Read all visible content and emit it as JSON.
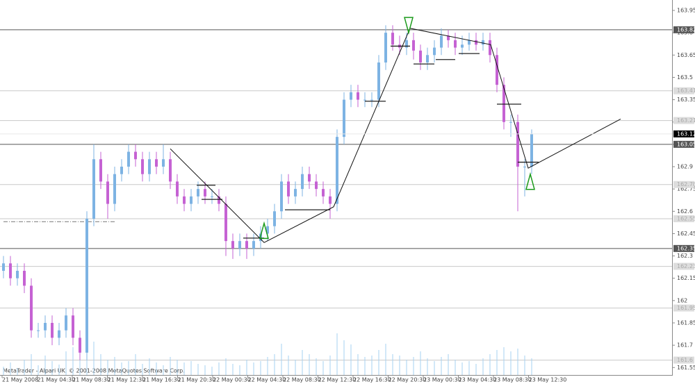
{
  "chart_data": {
    "type": "candlestick",
    "watermark": "MetaTrader - Alpari UK, © 2001-2008 MetaQuotes Software Corp.",
    "xlabels": [
      "21 May 2008",
      "21 May 04:30",
      "21 May 08:30",
      "21 May 12:30",
      "21 May 16:30",
      "21 May 20:30",
      "22 May 00:30",
      "22 May 04:30",
      "22 May 08:30",
      "22 May 12:30",
      "22 May 16:30",
      "22 May 20:30",
      "23 May 00:30",
      "23 May 04:30",
      "23 May 08:30",
      "23 May 12:30"
    ],
    "ylim": [
      161.5,
      164.02
    ],
    "yticks": [
      163.95,
      163.8,
      163.65,
      163.5,
      163.35,
      163.2,
      163.05,
      162.9,
      162.75,
      162.6,
      162.45,
      162.3,
      162.15,
      162.0,
      161.85,
      161.7,
      161.55
    ],
    "open": [
      162.2,
      162.25,
      162.15,
      162.2,
      162.1,
      161.8,
      161.8,
      161.85,
      161.75,
      161.8,
      161.9,
      161.75,
      161.65,
      162.55,
      162.95,
      162.8,
      162.65,
      162.85,
      162.9,
      163.0,
      162.95,
      162.85,
      162.95,
      162.9,
      162.95,
      162.8,
      162.7,
      162.65,
      162.7,
      162.75,
      162.7,
      162.7,
      162.65,
      162.4,
      162.35,
      162.4,
      162.35,
      162.4,
      162.45,
      162.5,
      162.6,
      162.8,
      162.7,
      162.75,
      162.85,
      162.8,
      162.75,
      162.7,
      162.65,
      163.1,
      163.35,
      163.4,
      163.35,
      163.35,
      163.35,
      163.6,
      163.8,
      163.72,
      163.7,
      163.75,
      163.68,
      163.6,
      163.65,
      163.7,
      163.78,
      163.75,
      163.7,
      163.72,
      163.75,
      163.72,
      163.75,
      163.65,
      163.45,
      163.2,
      163.2,
      162.9,
      162.9
    ],
    "high": [
      162.3,
      162.3,
      162.25,
      162.25,
      162.15,
      161.85,
      161.9,
      161.9,
      161.85,
      161.95,
      161.95,
      161.8,
      162.6,
      163.05,
      163.0,
      162.85,
      162.9,
      162.95,
      163.05,
      163.05,
      163.0,
      163.0,
      163.0,
      163.05,
      163.0,
      162.85,
      162.75,
      162.75,
      162.8,
      162.8,
      162.75,
      162.75,
      162.7,
      162.45,
      162.45,
      162.45,
      162.45,
      162.5,
      162.55,
      162.65,
      162.85,
      162.85,
      162.8,
      162.9,
      162.9,
      162.85,
      162.8,
      162.75,
      163.15,
      163.4,
      163.45,
      163.45,
      163.4,
      163.4,
      163.65,
      163.85,
      163.85,
      163.78,
      163.8,
      163.8,
      163.72,
      163.7,
      163.75,
      163.83,
      163.82,
      163.8,
      163.78,
      163.8,
      163.8,
      163.8,
      163.8,
      163.7,
      163.5,
      163.25,
      163.25,
      162.95,
      163.15
    ],
    "low": [
      162.15,
      162.1,
      162.1,
      162.05,
      161.75,
      161.75,
      161.75,
      161.7,
      161.7,
      161.75,
      161.7,
      161.6,
      161.6,
      162.5,
      162.75,
      162.55,
      162.6,
      162.8,
      162.85,
      162.9,
      162.8,
      162.8,
      162.85,
      162.85,
      162.75,
      162.65,
      162.6,
      162.6,
      162.65,
      162.65,
      162.65,
      162.6,
      162.3,
      162.28,
      162.3,
      162.28,
      162.3,
      162.35,
      162.4,
      162.45,
      162.55,
      162.65,
      162.65,
      162.7,
      162.75,
      162.7,
      162.65,
      162.55,
      162.6,
      163.05,
      163.3,
      163.3,
      163.3,
      163.3,
      163.3,
      163.55,
      163.68,
      163.65,
      163.65,
      163.62,
      163.55,
      163.55,
      163.6,
      163.65,
      163.7,
      163.65,
      163.65,
      163.68,
      163.68,
      163.68,
      163.6,
      163.4,
      163.15,
      163.1,
      162.6,
      162.7,
      162.85
    ],
    "close": [
      162.25,
      162.15,
      162.2,
      162.1,
      161.8,
      161.8,
      161.85,
      161.75,
      161.8,
      161.9,
      161.75,
      161.65,
      162.55,
      162.95,
      162.8,
      162.65,
      162.85,
      162.9,
      163.0,
      162.95,
      162.85,
      162.95,
      162.9,
      162.95,
      162.8,
      162.7,
      162.65,
      162.7,
      162.75,
      162.7,
      162.7,
      162.65,
      162.4,
      162.35,
      162.4,
      162.35,
      162.4,
      162.45,
      162.5,
      162.6,
      162.8,
      162.7,
      162.75,
      162.85,
      162.8,
      162.75,
      162.7,
      162.65,
      163.1,
      163.35,
      163.4,
      163.35,
      163.35,
      163.35,
      163.6,
      163.8,
      163.72,
      163.7,
      163.75,
      163.68,
      163.6,
      163.65,
      163.7,
      163.78,
      163.75,
      163.7,
      163.72,
      163.75,
      163.72,
      163.75,
      163.65,
      163.45,
      163.2,
      163.2,
      162.9,
      162.9,
      163.12
    ],
    "volume": [
      12,
      18,
      10,
      22,
      30,
      14,
      28,
      20,
      15,
      34,
      40,
      25,
      55,
      48,
      30,
      22,
      26,
      18,
      20,
      30,
      16,
      24,
      18,
      14,
      26,
      22,
      18,
      20,
      16,
      14,
      12,
      18,
      24,
      16,
      14,
      22,
      18,
      20,
      26,
      30,
      45,
      28,
      22,
      36,
      30,
      24,
      20,
      28,
      60,
      50,
      44,
      30,
      26,
      28,
      36,
      45,
      30,
      28,
      22,
      26,
      34,
      24,
      20,
      26,
      30,
      22,
      18,
      20,
      16,
      24,
      30,
      36,
      40,
      34,
      38,
      28,
      24
    ],
    "up_color": "#7db3e3",
    "down_color": "#c562d3",
    "volume_color": "#a6d2f2",
    "levels": [
      {
        "price": 163.82,
        "major": true
      },
      {
        "price": 163.41,
        "major": false
      },
      {
        "price": 163.21,
        "major": false
      },
      {
        "price": 163.05,
        "major": true
      },
      {
        "price": 162.78,
        "major": false
      },
      {
        "price": 162.55,
        "major": false
      },
      {
        "price": 162.35,
        "major": true
      },
      {
        "price": 162.23,
        "major": false
      },
      {
        "price": 161.95,
        "major": false
      },
      {
        "price": 161.6,
        "major": false
      }
    ],
    "bid": 163.12,
    "zigzag": {
      "x": [
        24,
        37.5,
        47.5,
        58.5,
        70.1,
        75.5,
        88.8
      ],
      "y": [
        163.02,
        162.39,
        162.63,
        163.83,
        163.72,
        162.89,
        163.22
      ]
    },
    "arrows": [
      {
        "dir": "up",
        "x": 37.5,
        "price": 162.52
      },
      {
        "dir": "down",
        "x": 58.3,
        "price": 163.8
      },
      {
        "dir": "up",
        "x": 75.8,
        "price": 162.85
      }
    ],
    "segments": [
      {
        "x": [
          27.8,
          30.5
        ],
        "price": 162.775
      },
      {
        "x": [
          28.5,
          31.5
        ],
        "price": 162.68
      },
      {
        "x": [
          34.5,
          37.5
        ],
        "price": 162.42
      },
      {
        "x": [
          40.5,
          47
        ],
        "price": 162.61
      },
      {
        "x": [
          52,
          55
        ],
        "price": 163.34
      },
      {
        "x": [
          55.7,
          58.5
        ],
        "price": 163.71
      },
      {
        "x": [
          59,
          62
        ],
        "price": 163.59
      },
      {
        "x": [
          62.2,
          65
        ],
        "price": 163.62
      },
      {
        "x": [
          65.5,
          68.5
        ],
        "price": 163.66
      },
      {
        "x": [
          71,
          74.5
        ],
        "price": 163.32
      },
      {
        "x": [
          74,
          77
        ],
        "price": 162.93
      }
    ],
    "dashdot": {
      "x": [
        0,
        16
      ],
      "price": 162.53
    }
  }
}
